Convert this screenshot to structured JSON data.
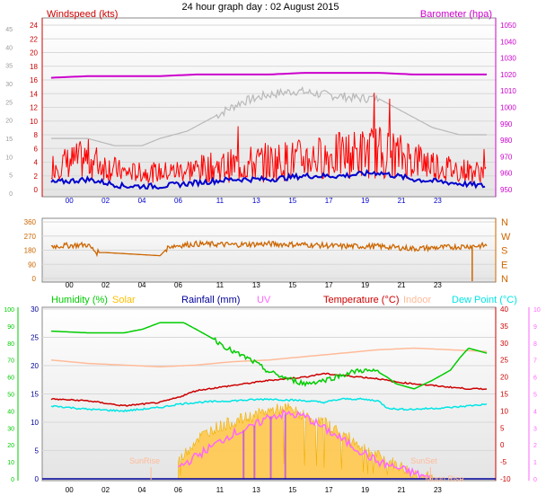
{
  "title": "24 hour graph day : 02 August 2015",
  "x_tick_labels": [
    "00",
    "02",
    "04",
    "06",
    "11",
    "13",
    "15",
    "17",
    "19",
    "21",
    "23"
  ],
  "colors": {
    "wind": "#ff0000",
    "wind_avg": "#0000cc",
    "baro": "#cc00cc",
    "humidity": "#00cc00",
    "solar": "#ffbf00",
    "solar_line": "#ffcc33",
    "rainfall": "#000099",
    "uv": "#ff66ff",
    "temperature": "#cc0000",
    "indoor": "#ffbb99",
    "dewpoint": "#00e5e5",
    "direction": "#cc6600",
    "grey": "#b8b8b8"
  },
  "chart_data": [
    {
      "type": "line",
      "name": "wind-chart",
      "labels": {
        "left": "Windspeed (kts)",
        "right": "Barometer (hpa)"
      },
      "outer_left_ticks": [
        "45",
        "40",
        "35",
        "30",
        "25",
        "20",
        "15",
        "10",
        "5",
        "0"
      ],
      "left_ticks": [
        "24",
        "22",
        "20",
        "18",
        "16",
        "14",
        "12",
        "10",
        "8",
        "6",
        "4",
        "2",
        "0"
      ],
      "ylim_left": [
        0,
        24
      ],
      "ylim_right": [
        950,
        1050
      ],
      "right_ticks": [
        "1050",
        "1040",
        "1030",
        "1020",
        "1010",
        "1000",
        "990",
        "980",
        "970",
        "960",
        "950"
      ],
      "x_hours": [
        0,
        2,
        4,
        6,
        8,
        10,
        12,
        14,
        16,
        18,
        20,
        22,
        24
      ],
      "series": [
        {
          "name": "Barometer (hpa)",
          "axis": "right",
          "x": [
            0,
            2,
            4,
            6,
            8,
            10,
            12,
            14,
            16,
            18,
            20,
            22,
            24
          ],
          "values": [
            1018,
            1019,
            1019,
            1019,
            1020,
            1020,
            1020,
            1021,
            1021,
            1021,
            1020,
            1020,
            1020
          ]
        },
        {
          "name": "Windspeed (kts)",
          "axis": "left",
          "style": "noisy",
          "x": [
            0,
            2,
            4,
            6,
            8,
            10,
            12,
            14,
            16,
            18,
            20,
            22,
            24
          ],
          "values": [
            3.5,
            4.5,
            2.5,
            2.5,
            3,
            3.5,
            4,
            4.5,
            5,
            5.5,
            4.5,
            3,
            2.5
          ],
          "spread": [
            2,
            3,
            1.5,
            1.5,
            2,
            2.5,
            3,
            3,
            3.5,
            4,
            3,
            2,
            1.5
          ]
        },
        {
          "name": "Average windspeed",
          "axis": "left",
          "style": "smooth",
          "x": [
            0,
            2,
            4,
            6,
            8,
            10,
            12,
            14,
            16,
            18,
            20,
            22,
            24
          ],
          "values": [
            1,
            1.5,
            0.5,
            0.5,
            1,
            1.5,
            1.5,
            2,
            2,
            2.5,
            1.5,
            1,
            0.5
          ]
        },
        {
          "name": "Grey trace",
          "axis": "outer",
          "style": "bars",
          "x": [
            0,
            2,
            3.5,
            5,
            6,
            7.5,
            9,
            10.5,
            12,
            13.5,
            15,
            17,
            18,
            19.5,
            21,
            22.5,
            24
          ],
          "values": [
            14,
            14,
            12,
            12,
            14,
            16,
            20,
            24,
            26,
            27,
            26,
            25,
            25,
            21,
            17,
            15,
            15
          ]
        }
      ]
    },
    {
      "type": "line",
      "name": "direction-chart",
      "left_ticks": [
        "360",
        "270",
        "180",
        "90",
        "0"
      ],
      "right_labels": [
        "N",
        "W",
        "S",
        "E",
        "N"
      ],
      "ylim": [
        0,
        360
      ],
      "series": [
        {
          "name": "Wind direction",
          "x": [
            0,
            2,
            2.5,
            3,
            6,
            6.5,
            8,
            10,
            12,
            14,
            16,
            18,
            20,
            22,
            24
          ],
          "values": [
            205,
            215,
            165,
            165,
            145,
            205,
            220,
            215,
            220,
            215,
            205,
            205,
            190,
            200,
            210
          ]
        }
      ]
    },
    {
      "type": "line",
      "name": "combined-chart",
      "header": [
        "Humidity (%)",
        "Solar",
        "Rainfall (mm)",
        "UV",
        "Temperature (°C)",
        "Indoor",
        "Dew Point (°C)"
      ],
      "outer_left_ticks": [
        "100",
        "90",
        "80",
        "70",
        "60",
        "50",
        "40",
        "30",
        "20",
        "10",
        "0"
      ],
      "left_ticks": [
        "30",
        "25",
        "20",
        "15",
        "10",
        "5",
        "0"
      ],
      "right_ticks": [
        "40",
        "35",
        "30",
        "25",
        "20",
        "15",
        "10",
        "5",
        "0",
        "-5",
        "-10"
      ],
      "uv_ticks": [
        "10",
        "9",
        "8",
        "7",
        "6",
        "5",
        "4",
        "3",
        "2",
        "1",
        "0"
      ],
      "ylim_humidity": [
        0,
        100
      ],
      "ylim_temperature": [
        -10,
        40
      ],
      "ylim_solar": [
        0,
        30
      ],
      "annotations": [
        "SunRise",
        "SunSet",
        "Moon Rise"
      ],
      "series": [
        {
          "name": "Humidity (%)",
          "axis": "humidity",
          "x": [
            0,
            2,
            4,
            5,
            6,
            7.3,
            8,
            9,
            10,
            11,
            12,
            13,
            14,
            15,
            16,
            17,
            18,
            18.5,
            19,
            20,
            21,
            22,
            22.5,
            23,
            24
          ],
          "values": [
            87,
            86,
            86,
            88,
            92,
            92,
            88,
            82,
            75,
            70,
            63,
            59,
            56,
            58,
            61,
            64,
            63,
            60,
            56,
            53,
            58,
            64,
            71,
            77,
            74
          ]
        },
        {
          "name": "Temperature (°C)",
          "axis": "temperature",
          "x": [
            0,
            2,
            4,
            5,
            6,
            7,
            7.5,
            8,
            10,
            12,
            14,
            15,
            16,
            17,
            18,
            19,
            20,
            21,
            22,
            23,
            24
          ],
          "values": [
            13.5,
            13,
            11.5,
            12,
            12.5,
            14,
            15,
            16,
            17.5,
            19,
            20,
            21,
            20.5,
            20,
            19.5,
            18.5,
            18,
            17.5,
            17,
            16.5,
            16.5
          ]
        },
        {
          "name": "Dew Point (°C)",
          "axis": "temperature",
          "x": [
            0,
            2,
            4,
            5,
            6,
            7,
            8,
            10,
            12,
            14,
            15,
            16,
            17,
            18,
            18.5,
            19,
            20,
            22,
            24
          ],
          "values": [
            11.5,
            10.5,
            10,
            10.5,
            11,
            12,
            12.5,
            13,
            13.5,
            13,
            12.5,
            13.5,
            13.5,
            13,
            11,
            10.5,
            10.5,
            11,
            12
          ]
        },
        {
          "name": "Indoor",
          "axis": "temperature",
          "x": [
            0,
            2,
            4,
            6,
            8,
            10,
            12,
            14,
            16,
            18,
            20,
            22,
            24
          ],
          "values": [
            25,
            24,
            23.5,
            23,
            23.5,
            24.5,
            25,
            26,
            27,
            28,
            28.5,
            28,
            27.5
          ]
        },
        {
          "name": "Solar",
          "axis": "solar",
          "style": "area",
          "x": [
            7,
            7.5,
            8,
            9,
            10,
            11,
            12,
            13,
            14,
            15,
            16,
            17,
            18,
            19,
            20,
            21
          ],
          "values": [
            3,
            5,
            7,
            9,
            10,
            11,
            12,
            12.5,
            11,
            10,
            8,
            6,
            4,
            2.5,
            1,
            0
          ]
        },
        {
          "name": "UV",
          "axis": "solar",
          "style": "line",
          "x": [
            7,
            8,
            9,
            10,
            11,
            12,
            13,
            14,
            15,
            16,
            17,
            18,
            19,
            20,
            21
          ],
          "values": [
            2,
            4,
            6,
            8,
            9,
            11,
            11.5,
            11,
            9,
            7,
            5,
            3,
            2,
            1,
            0
          ]
        }
      ]
    }
  ]
}
